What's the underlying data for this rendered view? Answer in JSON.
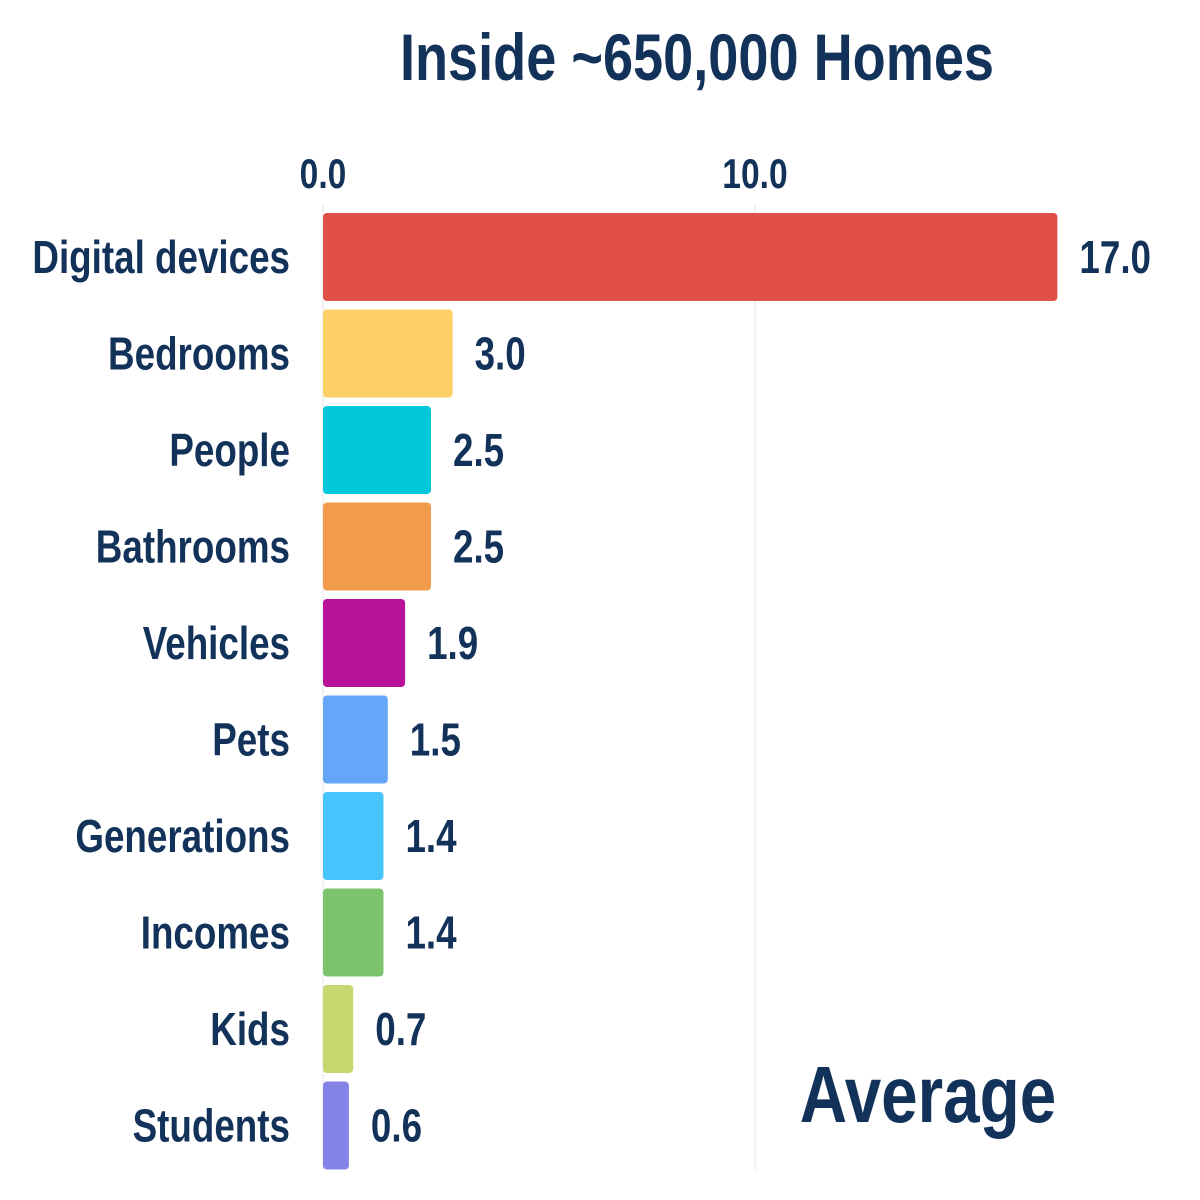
{
  "chart_data": {
    "type": "bar",
    "orientation": "horizontal",
    "title": "Inside ~650,000 Homes",
    "annotation": "Average",
    "xlabel": "",
    "ylabel": "",
    "xlim": [
      0,
      17
    ],
    "xticks": [
      0,
      10
    ],
    "xtick_labels": [
      "0.0",
      "10.0"
    ],
    "grid": true,
    "categories": [
      "Digital devices",
      "Bedrooms",
      "People",
      "Bathrooms",
      "Vehicles",
      "Pets",
      "Generations",
      "Incomes",
      "Kids",
      "Students"
    ],
    "values": [
      17.0,
      3.0,
      2.5,
      2.5,
      1.9,
      1.5,
      1.4,
      1.4,
      0.7,
      0.6
    ],
    "value_labels": [
      "17.0",
      "3.0",
      "2.5",
      "2.5",
      "1.9",
      "1.5",
      "1.4",
      "1.4",
      "0.7",
      "0.6"
    ],
    "colors": [
      "#E05048",
      "#FDD066",
      "#00C8DA",
      "#F29B4A",
      "#B8129A",
      "#66A6F8",
      "#48C4FC",
      "#7CC46C",
      "#C8D870",
      "#8484E8"
    ],
    "text_color": "#13325A"
  }
}
